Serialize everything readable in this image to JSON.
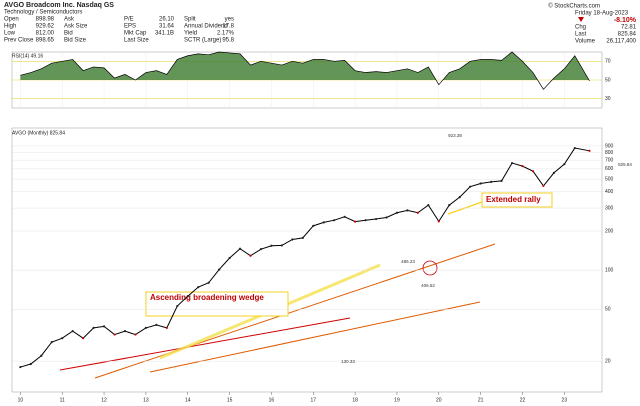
{
  "header": {
    "symbol": "AVGO Broadcom Inc. Nasdaq GS",
    "sector": "Technology / Semiconductors",
    "fields": [
      {
        "label": "Open",
        "value": "898.98"
      },
      {
        "label": "High",
        "value": "929.62"
      },
      {
        "label": "Low",
        "value": "812.00"
      },
      {
        "label": "Prev Close",
        "value": "898.65"
      },
      {
        "label": "Ask",
        "value": ""
      },
      {
        "label": "Ask Size",
        "value": ""
      },
      {
        "label": "Bid",
        "value": ""
      },
      {
        "label": "Bid Size",
        "value": ""
      },
      {
        "label": "P/E",
        "value": "26.10"
      },
      {
        "label": "EPS",
        "value": "31.64"
      },
      {
        "label": "Mkt Cap",
        "value": "341.1B"
      },
      {
        "label": "Last Size",
        "value": ""
      },
      {
        "label": "Split",
        "value": "yes"
      },
      {
        "label": "Annual Dividend",
        "value": "17.8"
      },
      {
        "label": "Yield",
        "value": "2.17%"
      },
      {
        "label": "SCTR (Large)",
        "value": "95.8"
      }
    ],
    "credit": "© StockCharts.com",
    "date": "Friday 18-Aug-2023",
    "change_pct": "-8.10%",
    "quote": [
      {
        "label": "Chg",
        "value": "72.81"
      },
      {
        "label": "Last",
        "value": "825.84"
      },
      {
        "label": "Volume",
        "value": "26,117,400"
      }
    ]
  },
  "chart_data": [
    {
      "type": "line",
      "title": "RSI(14) 49.16",
      "color": "#000000",
      "fill": "#3c7a2e",
      "x": [
        2010,
        2010.25,
        2010.5,
        2010.75,
        2011,
        2011.25,
        2011.5,
        2011.75,
        2012,
        2012.25,
        2012.5,
        2012.75,
        2013,
        2013.25,
        2013.5,
        2013.75,
        2014,
        2014.25,
        2014.5,
        2014.75,
        2015,
        2015.25,
        2015.5,
        2015.75,
        2016,
        2016.25,
        2016.5,
        2016.75,
        2017,
        2017.25,
        2017.5,
        2017.75,
        2018,
        2018.25,
        2018.5,
        2018.75,
        2019,
        2019.25,
        2019.5,
        2019.75,
        2020,
        2020.25,
        2020.5,
        2020.75,
        2021,
        2021.25,
        2021.5,
        2021.75,
        2022,
        2022.25,
        2022.5,
        2022.75,
        2023,
        2023.25,
        2023.6
      ],
      "values": [
        55,
        58,
        62,
        68,
        70,
        72,
        60,
        64,
        63,
        52,
        56,
        50,
        58,
        60,
        56,
        72,
        76,
        78,
        77,
        80,
        79,
        78,
        66,
        70,
        68,
        66,
        70,
        68,
        72,
        72,
        70,
        71,
        60,
        58,
        59,
        58,
        60,
        62,
        58,
        64,
        45,
        58,
        62,
        70,
        72,
        72,
        71,
        80,
        70,
        58,
        40,
        52,
        62,
        76,
        49.16
      ],
      "ylim": [
        20,
        80
      ],
      "yticks": [
        30,
        50,
        70
      ]
    },
    {
      "type": "line",
      "title": "AVGO (Monthly) 825.84",
      "color": "#000000",
      "log_scale": true,
      "x": [
        2010,
        2010.25,
        2010.5,
        2010.75,
        2011,
        2011.25,
        2011.5,
        2011.75,
        2012,
        2012.25,
        2012.5,
        2012.75,
        2013,
        2013.25,
        2013.5,
        2013.75,
        2014,
        2014.25,
        2014.5,
        2014.75,
        2015,
        2015.25,
        2015.5,
        2015.75,
        2016,
        2016.25,
        2016.5,
        2016.75,
        2017,
        2017.25,
        2017.5,
        2017.75,
        2018,
        2018.25,
        2018.5,
        2018.75,
        2019,
        2019.25,
        2019.5,
        2019.75,
        2020,
        2020.25,
        2020.5,
        2020.75,
        2021,
        2021.25,
        2021.5,
        2021.75,
        2022,
        2022.25,
        2022.5,
        2022.75,
        2023,
        2023.25,
        2023.6
      ],
      "values": [
        18,
        19,
        22,
        28,
        30,
        34,
        30,
        36,
        37,
        32,
        34,
        32,
        36,
        38,
        36,
        53,
        63,
        74,
        80,
        101,
        124,
        146,
        129,
        145,
        154,
        155,
        172,
        177,
        219,
        233,
        242,
        257,
        236,
        242,
        247,
        254,
        276,
        288,
        276,
        316,
        237,
        316,
        364,
        438,
        463,
        477,
        485,
        665,
        630,
        576,
        444,
        559,
        652,
        867,
        825.84
      ],
      "xlim": [
        2009.8,
        2023.9
      ],
      "ylim": [
        12,
        1000
      ],
      "xticks": [
        {
          "value": 2010,
          "label": "10"
        },
        {
          "value": 2011,
          "label": "11"
        },
        {
          "value": 2012,
          "label": "12"
        },
        {
          "value": 2013,
          "label": "13"
        },
        {
          "value": 2014,
          "label": "14"
        },
        {
          "value": 2015,
          "label": "15"
        },
        {
          "value": 2016,
          "label": "16"
        },
        {
          "value": 2017,
          "label": "17"
        },
        {
          "value": 2018,
          "label": "18"
        },
        {
          "value": 2019,
          "label": "19"
        },
        {
          "value": 2020,
          "label": "20"
        },
        {
          "value": 2021,
          "label": "21"
        },
        {
          "value": 2022,
          "label": "22"
        },
        {
          "value": 2023,
          "label": "23"
        }
      ],
      "yticks": [
        20,
        50,
        100,
        200,
        300,
        400,
        500,
        600,
        700,
        800,
        900
      ],
      "annotations": [
        "Ascending broadening wedge",
        "Extended rally"
      ],
      "price_labels": [
        "923.38",
        "486.23",
        "406.52",
        "130.33",
        "825.84"
      ]
    }
  ]
}
